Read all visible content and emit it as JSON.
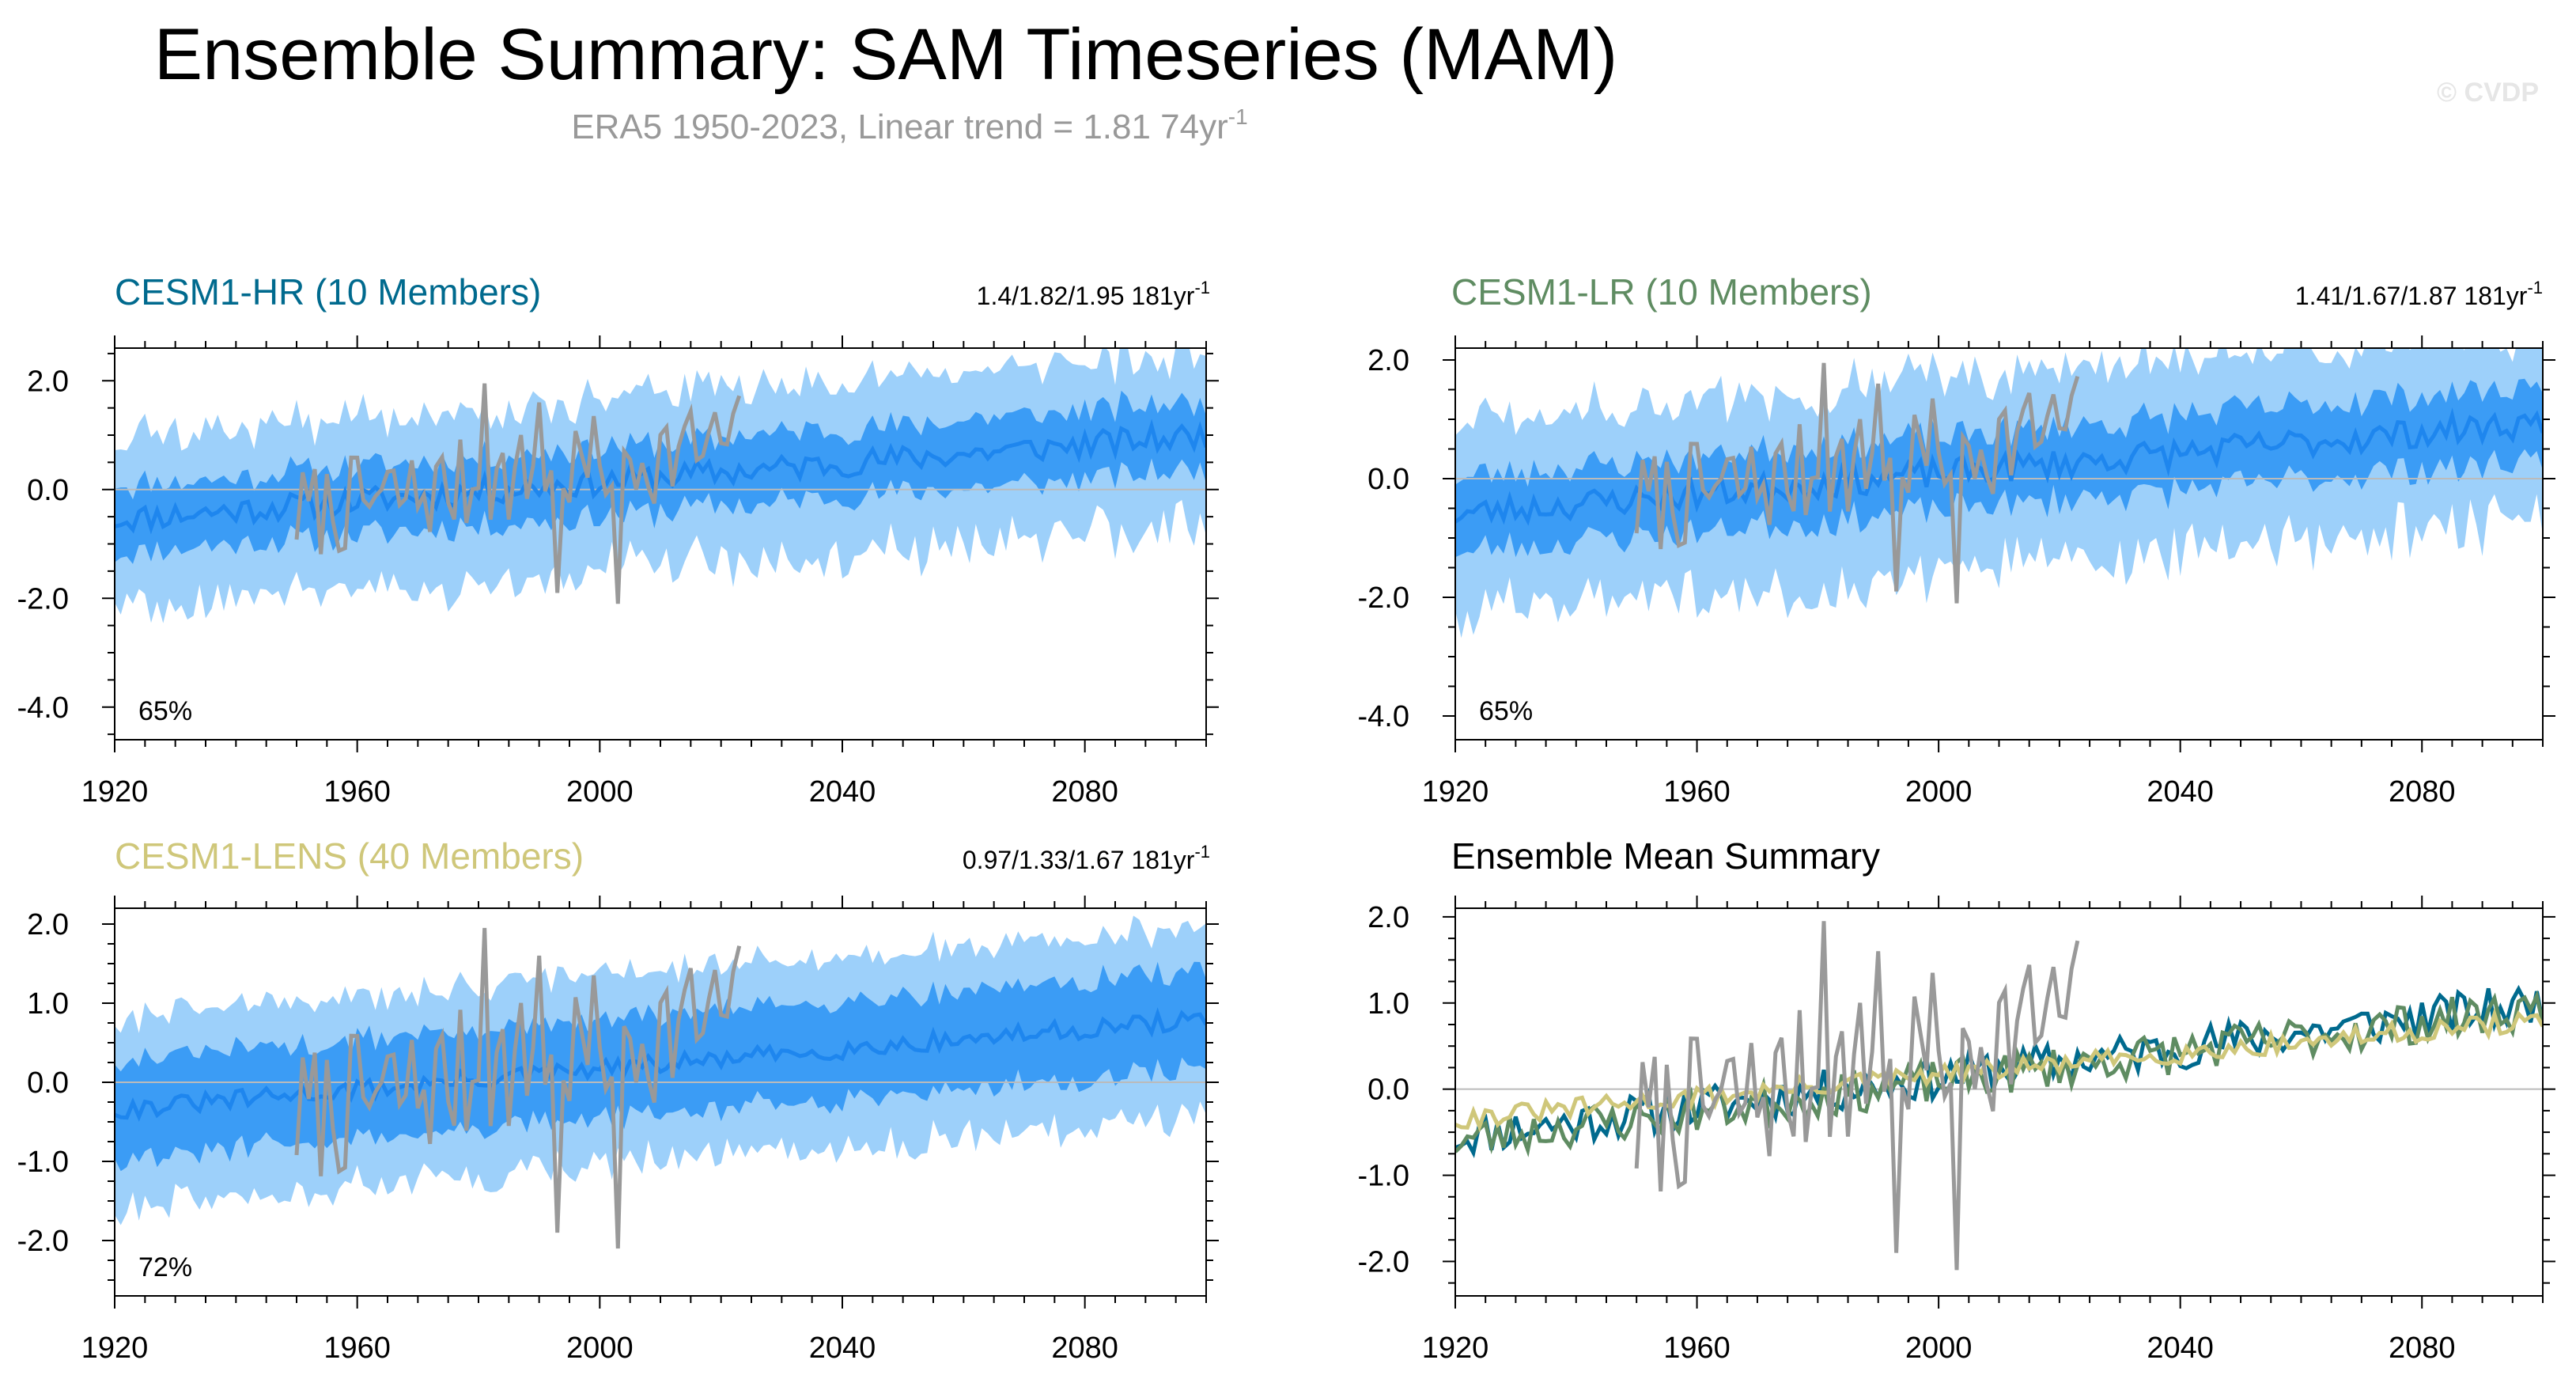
{
  "header": {
    "title": "Ensemble Summary: SAM Timeseries (MAM)",
    "subtitle_main": "ERA5 1950-2023, Linear trend = 1.81 74yr",
    "subtitle_sup": "-1",
    "credit": "© CVDP"
  },
  "colors": {
    "band_outer": "#9dd0fa",
    "band_inner": "#3b9cf5",
    "mean_line": "#1e86ee",
    "obs_line": "#999999",
    "hr": "#006a8e",
    "lr": "#5f8c62",
    "lens": "#cfc77a",
    "zero_line": "#bbbbbb"
  },
  "chart_data": [
    {
      "id": "hr",
      "type": "area",
      "title": "CESM1-HR (10 Members)",
      "title_color": "#006a8e",
      "stat": "1.4/1.82/1.95 181yr",
      "stat_sup": "-1",
      "percent_label": "65%",
      "xlim": [
        1920,
        2100
      ],
      "ylim": [
        -4.6,
        2.6
      ],
      "yticks": [
        -4.0,
        -2.0,
        0.0,
        2.0
      ],
      "ytick_labels": [
        "-4.0",
        "-2.0",
        "0.0",
        "2.0"
      ],
      "xticks": [
        1920,
        1960,
        2000,
        2040,
        2080
      ],
      "xtick_labels": [
        "1920",
        "1960",
        "2000",
        "2040",
        "2080"
      ],
      "mean": {
        "start": -0.55,
        "end": 1.0,
        "noise": 0.25,
        "seed": 11
      },
      "inner_half_width": 0.55,
      "outer_half_width": 1.25,
      "outer_noise": 0.55,
      "obs": {
        "start_year": 1950,
        "end_year": 2023,
        "base_start": -0.45,
        "base_end": 0.9,
        "noise": 0.9,
        "seed": 7
      }
    },
    {
      "id": "lr",
      "type": "area",
      "title": "CESM1-LR (10 Members)",
      "title_color": "#5f8c62",
      "stat": "1.41/1.67/1.87 181yr",
      "stat_sup": "-1",
      "percent_label": "65%",
      "xlim": [
        1920,
        2100
      ],
      "ylim": [
        -4.4,
        2.2
      ],
      "yticks": [
        -4.0,
        -2.0,
        0.0,
        2.0
      ],
      "ytick_labels": [
        "-4.0",
        "-2.0",
        "0.0",
        "2.0"
      ],
      "xticks": [
        1920,
        1960,
        2000,
        2040,
        2080
      ],
      "xtick_labels": [
        "1920",
        "1960",
        "2000",
        "2040",
        "2080"
      ],
      "mean": {
        "start": -0.6,
        "end": 0.95,
        "noise": 0.25,
        "seed": 23
      },
      "inner_half_width": 0.55,
      "outer_half_width": 1.3,
      "outer_noise": 0.55,
      "obs": {
        "start_year": 1950,
        "end_year": 2023,
        "base_start": -0.45,
        "base_end": 0.9,
        "noise": 0.9,
        "seed": 7
      }
    },
    {
      "id": "lens",
      "type": "area",
      "title": "CESM1-LENS (40 Members)",
      "title_color": "#cfc77a",
      "stat": "0.97/1.33/1.67 181yr",
      "stat_sup": "-1",
      "percent_label": "72%",
      "xlim": [
        1920,
        2100
      ],
      "ylim": [
        -2.7,
        2.2
      ],
      "yticks": [
        -2.0,
        -1.0,
        0.0,
        1.0,
        2.0
      ],
      "ytick_labels": [
        "-2.0",
        "-1.0",
        "0.0",
        "1.0",
        "2.0"
      ],
      "xticks": [
        1920,
        1960,
        2000,
        2040,
        2080
      ],
      "xtick_labels": [
        "1920",
        "1960",
        "2000",
        "2040",
        "2080"
      ],
      "mean": {
        "start": -0.35,
        "end": 0.8,
        "noise": 0.12,
        "seed": 31
      },
      "inner_half_width": 0.55,
      "outer_half_width": 1.05,
      "outer_noise": 0.25,
      "obs": {
        "start_year": 1950,
        "end_year": 2023,
        "base_start": -0.45,
        "base_end": 0.9,
        "noise": 0.9,
        "seed": 7
      }
    },
    {
      "id": "summary",
      "type": "line",
      "title": "Ensemble Mean Summary",
      "title_color": "#000000",
      "xlim": [
        1920,
        2100
      ],
      "ylim": [
        -2.4,
        2.1
      ],
      "yticks": [
        -2.0,
        -1.0,
        0.0,
        1.0,
        2.0
      ],
      "ytick_labels": [
        "-2.0",
        "-1.0",
        "0.0",
        "1.0",
        "2.0"
      ],
      "xticks": [
        1920,
        1960,
        2000,
        2040,
        2080
      ],
      "xtick_labels": [
        "1920",
        "1960",
        "2000",
        "2040",
        "2080"
      ],
      "series": [
        {
          "name": "CESM1-HR",
          "color": "#006a8e",
          "start": -0.55,
          "end": 1.0,
          "noise": 0.25,
          "seed": 11
        },
        {
          "name": "CESM1-LR",
          "color": "#5f8c62",
          "start": -0.6,
          "end": 0.95,
          "noise": 0.25,
          "seed": 23
        },
        {
          "name": "CESM1-LENS",
          "color": "#cfc77a",
          "start": -0.35,
          "end": 0.8,
          "noise": 0.12,
          "seed": 31
        }
      ],
      "obs": {
        "start_year": 1950,
        "end_year": 2023,
        "base_start": -0.45,
        "base_end": 0.9,
        "noise": 0.9,
        "seed": 7
      }
    }
  ]
}
